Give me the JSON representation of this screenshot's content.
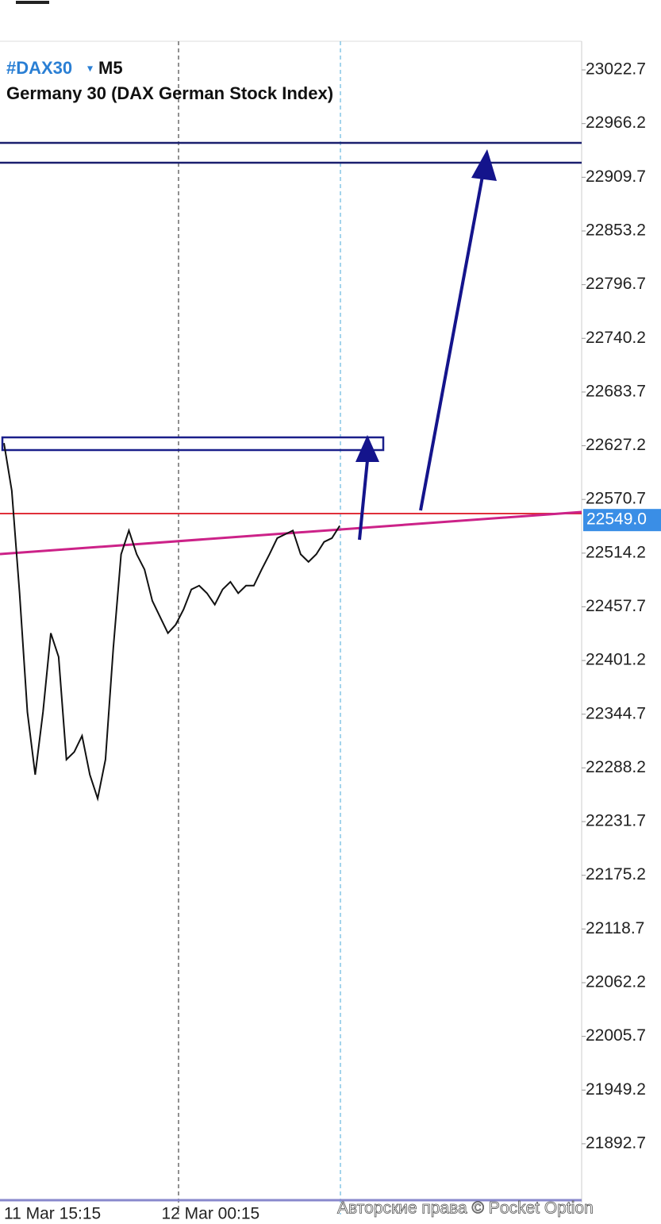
{
  "chart_data": {
    "type": "line",
    "symbol": "#DAX30",
    "timeframe": "M5",
    "title": "Germany 30 (DAX German Stock Index)",
    "watermark": "Авторские права © Pocket Option",
    "categories": [
      "11 Mar 15:15",
      null,
      null,
      null,
      null,
      null,
      null,
      null,
      null,
      null,
      null,
      null,
      null,
      null,
      null,
      null,
      null,
      null,
      null,
      null,
      null,
      null,
      "12 Mar 00:15",
      null,
      null,
      null,
      null,
      null,
      null,
      null,
      null,
      null,
      null,
      null,
      null,
      null,
      null,
      null,
      null,
      null,
      null,
      null,
      null,
      null
    ],
    "series": [
      {
        "name": "DAX30",
        "color": "#111111",
        "values": [
          22630,
          22580,
          22472,
          22347,
          22281,
          22347,
          22430,
          22405,
          22297,
          22305,
          22322,
          22281,
          22256,
          22297,
          22414,
          22513,
          22538,
          22513,
          22497,
          22464,
          22447,
          22430,
          22439,
          22455,
          22476,
          22480,
          22472,
          22460,
          22476,
          22484,
          22472,
          22480,
          22480,
          22497,
          22513,
          22530,
          22534,
          22538,
          22513,
          22505,
          22513,
          22526,
          22530,
          22543
        ]
      }
    ],
    "current_price": {
      "value": 22549,
      "label": "22549.0"
    },
    "ylim": [
      21835.0,
      23050.3
    ],
    "yticks": [
      23022.7,
      22966.2,
      22909.7,
      22853.2,
      22796.7,
      22740.2,
      22683.7,
      22627.2,
      22570.7,
      22514.2,
      22457.7,
      22401.2,
      22344.7,
      22288.2,
      22231.7,
      22175.2,
      22118.7,
      22062.2,
      22005.7,
      21949.2,
      21892.7
    ]
  }
}
